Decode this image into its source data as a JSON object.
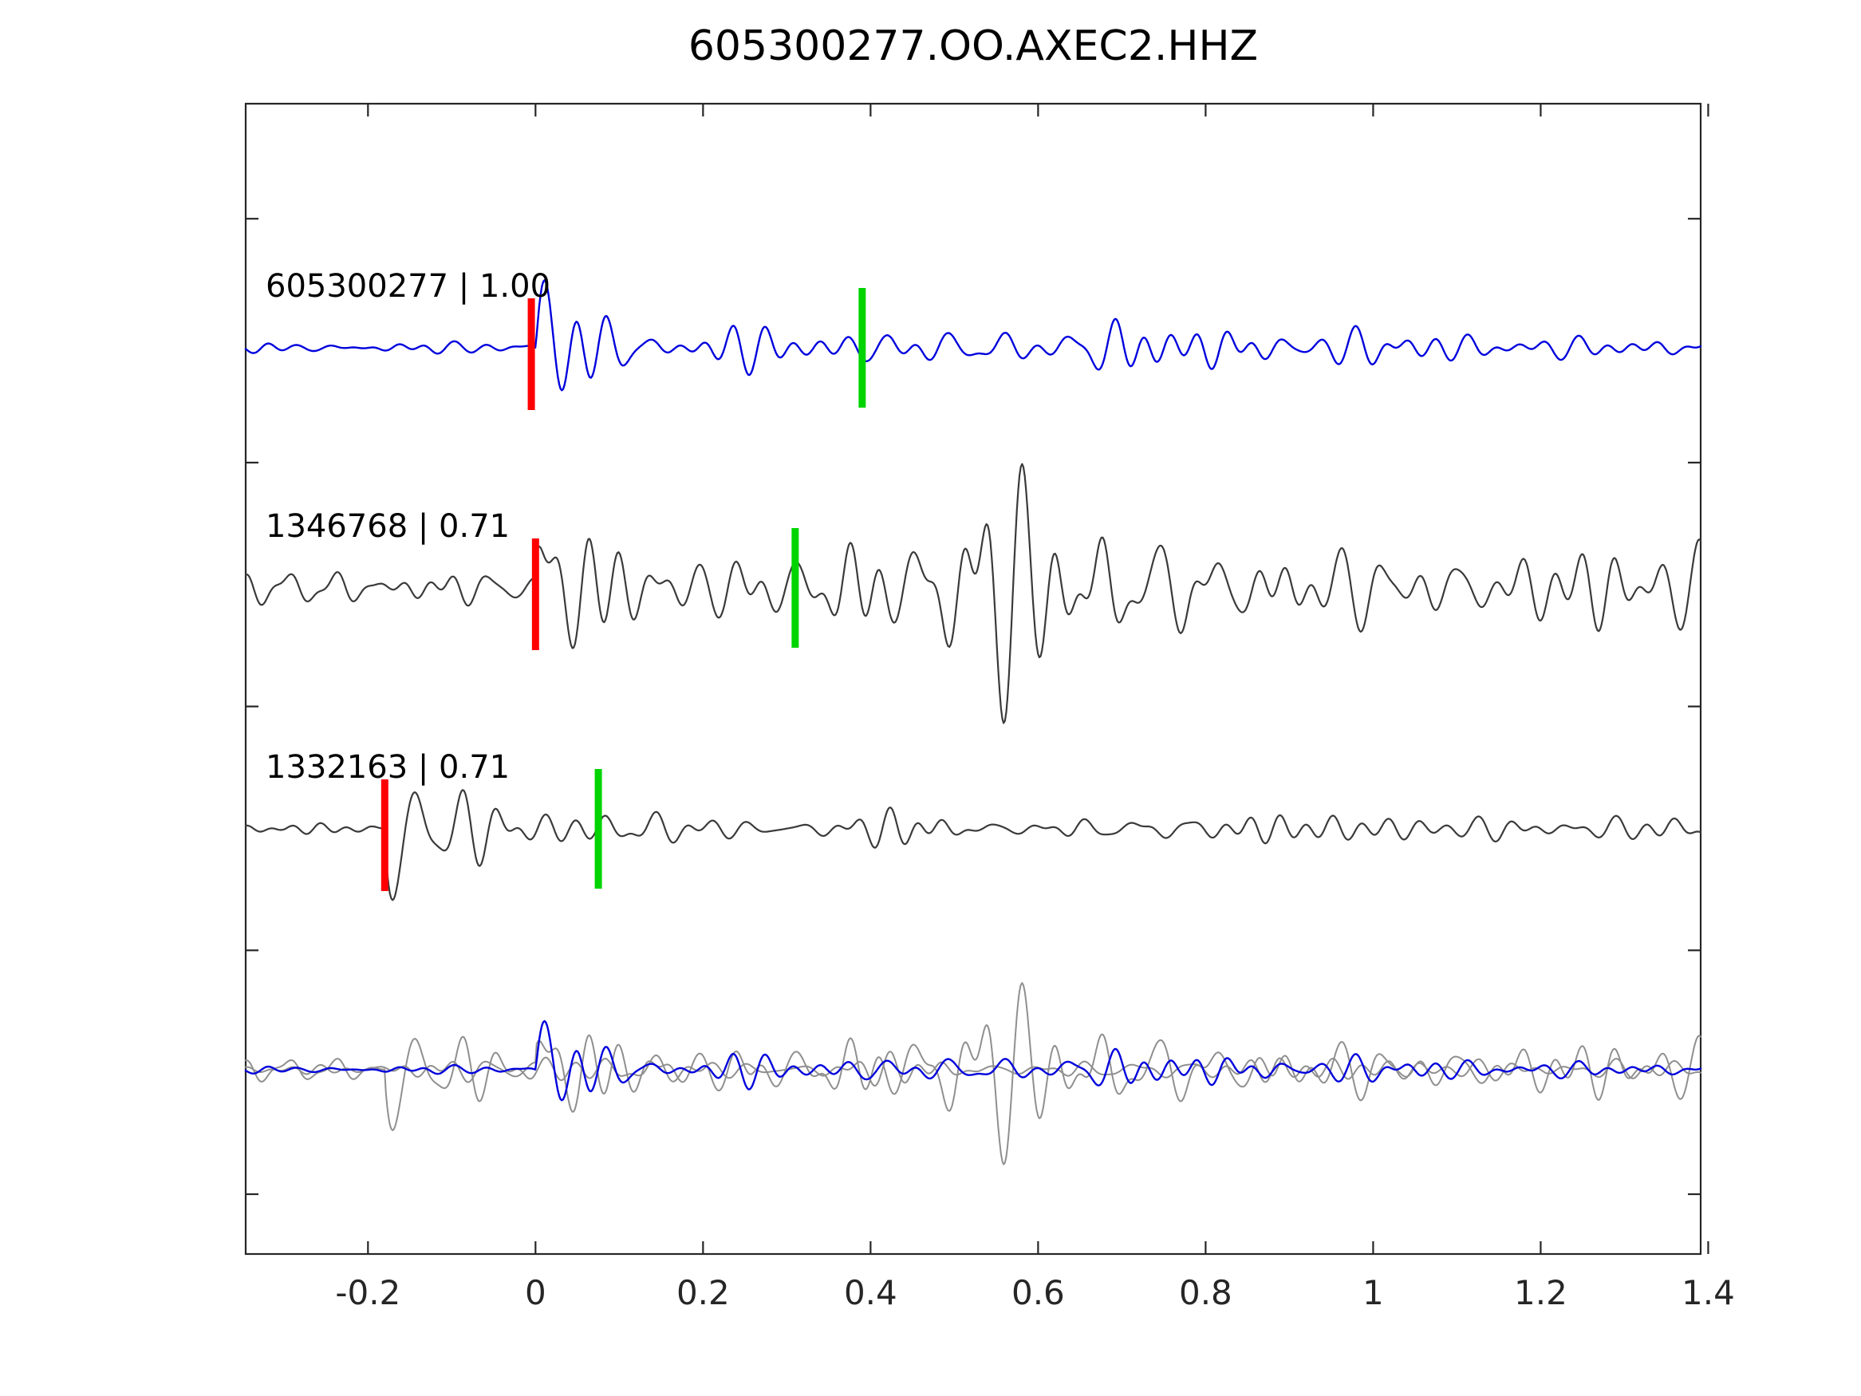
{
  "chart_data": {
    "type": "line",
    "title": "605300277.OO.AXEC2.HHZ",
    "xlabel": "",
    "ylabel": "",
    "grid": false,
    "legend": "none",
    "xlim": [
      -0.346,
      1.391
    ],
    "xticks": [
      -0.2,
      0,
      0.2,
      0.4,
      0.6,
      0.8,
      1,
      1.2,
      1.4
    ],
    "xtick_labels": [
      "-0.2",
      "0",
      "0.2",
      "0.4",
      "0.6",
      "0.8",
      "1",
      "1.2",
      "1.4"
    ],
    "axis_color": "#262626",
    "traces": [
      {
        "id": "605300277",
        "label": "605300277 | 1.00",
        "correlation": "1.00",
        "row": 0,
        "picks": [
          {
            "type": "red",
            "time": -0.005,
            "color": "#ff0000"
          },
          {
            "type": "green",
            "time": 0.39,
            "color": "#00d400"
          }
        ],
        "lines": [
          {
            "color": "#0000dd",
            "width": 2.4,
            "synth": {
              "seed": 11,
              "scale": 1,
              "noise_amp": 6,
              "noise_band": [
                12,
                38
              ],
              "onset": 0,
              "spike_amp": 150,
              "spike_f": 24,
              "spike_tau": 0.035,
              "spike_sign": 1,
              "burst_amp": 100,
              "burst_decay": 0.085,
              "burst_band": [
                14,
                34
              ],
              "coda_amp": 17,
              "bursts": [
                {
                  "t": 0.52,
                  "amp": 18,
                  "w": 0.12
                },
                {
                  "t": 0.7,
                  "amp": 12,
                  "w": 0.1
                }
              ]
            }
          }
        ]
      },
      {
        "id": "1346768",
        "label": "1346768 | 0.71",
        "correlation": "0.71",
        "row": 1,
        "picks": [
          {
            "type": "red",
            "time": 0.0,
            "color": "#ff0000"
          },
          {
            "type": "green",
            "time": 0.31,
            "color": "#00d400"
          }
        ],
        "lines": [
          {
            "color": "#3a3a3a",
            "width": 2.2,
            "synth": {
              "seed": 22,
              "scale": 1,
              "noise_amp": 20,
              "noise_band": [
                16,
                42
              ],
              "onset": 0,
              "spike_amp": 135,
              "spike_f": 22,
              "spike_tau": 0.04,
              "spike_sign": 1,
              "burst_amp": 115,
              "burst_decay": 0.1,
              "burst_band": [
                13,
                33
              ],
              "coda_amp": 40,
              "bursts": [
                {
                  "t": 0.5,
                  "amp": 50,
                  "w": 0.07
                },
                {
                  "t": 0.63,
                  "amp": 65,
                  "w": 0.07
                },
                {
                  "t": 0.76,
                  "amp": 30,
                  "w": 0.06
                }
              ]
            }
          }
        ]
      },
      {
        "id": "1332163",
        "label": "1332163 | 0.71",
        "correlation": "0.71",
        "row": 2,
        "picks": [
          {
            "type": "red",
            "time": -0.18,
            "color": "#ff0000"
          },
          {
            "type": "green",
            "time": 0.075,
            "color": "#00d400"
          }
        ],
        "lines": [
          {
            "color": "#3a3a3a",
            "width": 2.2,
            "synth": {
              "seed": 33,
              "scale": 1,
              "noise_amp": 6,
              "noise_band": [
                12,
                36
              ],
              "onset": -0.18,
              "spike_amp": 135,
              "spike_f": 20,
              "spike_tau": 0.045,
              "spike_sign": -1,
              "burst_amp": 90,
              "burst_decay": 0.075,
              "burst_band": [
                14,
                34
              ],
              "coda_amp": 13,
              "bursts": [
                {
                  "t": 0.48,
                  "amp": 12,
                  "w": 0.05
                }
              ]
            }
          }
        ]
      },
      {
        "id": "overlay",
        "label": "",
        "row": 3,
        "picks": [],
        "lines": [
          {
            "color": "#8f8f8f",
            "width": 2.0,
            "synth": {
              "seed": 33,
              "scale": 0.85,
              "noise_amp": 6,
              "noise_band": [
                12,
                36
              ],
              "onset": -0.18,
              "spike_amp": 135,
              "spike_f": 20,
              "spike_tau": 0.045,
              "spike_sign": -1,
              "burst_amp": 90,
              "burst_decay": 0.075,
              "burst_band": [
                14,
                34
              ],
              "coda_amp": 13,
              "bursts": [
                {
                  "t": 0.48,
                  "amp": 12,
                  "w": 0.05
                }
              ]
            }
          },
          {
            "color": "#8f8f8f",
            "width": 2.0,
            "synth": {
              "seed": 22,
              "scale": 0.7,
              "noise_amp": 20,
              "noise_band": [
                16,
                42
              ],
              "onset": 0,
              "spike_amp": 135,
              "spike_f": 22,
              "spike_tau": 0.04,
              "spike_sign": 1,
              "burst_amp": 115,
              "burst_decay": 0.1,
              "burst_band": [
                13,
                33
              ],
              "coda_amp": 40,
              "bursts": [
                {
                  "t": 0.5,
                  "amp": 50,
                  "w": 0.07
                },
                {
                  "t": 0.63,
                  "amp": 65,
                  "w": 0.07
                },
                {
                  "t": 0.76,
                  "amp": 30,
                  "w": 0.06
                }
              ]
            }
          },
          {
            "color": "#0000dd",
            "width": 2.4,
            "synth": {
              "seed": 11,
              "scale": 0.72,
              "noise_amp": 6,
              "noise_band": [
                12,
                38
              ],
              "onset": 0,
              "spike_amp": 150,
              "spike_f": 24,
              "spike_tau": 0.035,
              "spike_sign": 1,
              "burst_amp": 100,
              "burst_decay": 0.085,
              "burst_band": [
                14,
                34
              ],
              "coda_amp": 17,
              "bursts": [
                {
                  "t": 0.52,
                  "amp": 18,
                  "w": 0.12
                },
                {
                  "t": 0.7,
                  "amp": 12,
                  "w": 0.1
                }
              ]
            }
          }
        ]
      }
    ]
  }
}
